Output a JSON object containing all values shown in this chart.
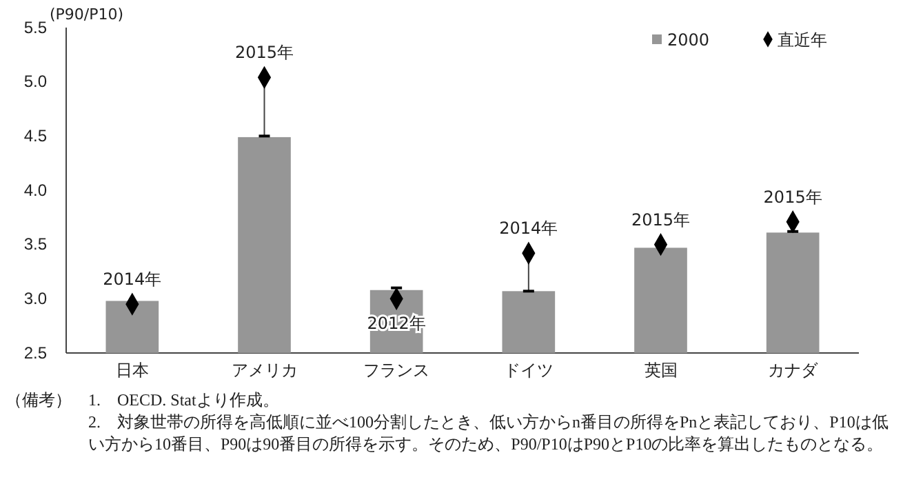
{
  "chart_data": {
    "type": "bar",
    "ylabel": "(P90/P10)",
    "categories": [
      "日本",
      "アメリカ",
      "フランス",
      "ドイツ",
      "英国",
      "カナダ"
    ],
    "series": [
      {
        "name": "2000",
        "type": "bar",
        "color": "#969696",
        "values": [
          2.98,
          4.49,
          3.08,
          3.07,
          3.47,
          3.61
        ]
      },
      {
        "name": "直近年",
        "type": "scatter",
        "marker": "diamond",
        "color": "#000000",
        "values": [
          2.95,
          5.04,
          3.0,
          3.42,
          3.5,
          3.71
        ],
        "errors": [
          null,
          [
            4.5,
            5.04
          ],
          [
            3.0,
            3.1
          ],
          [
            3.07,
            3.42
          ],
          null,
          [
            3.62,
            3.71
          ]
        ]
      }
    ],
    "ylim": [
      2.5,
      5.5
    ],
    "yticks": [
      {
        "value": 2.5,
        "label": "2.5"
      },
      {
        "value": 3,
        "label": "3.0"
      },
      {
        "value": 3.5,
        "label": "3.5"
      },
      {
        "value": 4,
        "label": "4.0"
      },
      {
        "value": 4.5,
        "label": "4.5"
      },
      {
        "value": 5,
        "label": "5.0"
      },
      {
        "value": 5.5,
        "label": "5.5"
      }
    ],
    "grid": false,
    "legend": "top right",
    "annotations": [
      {
        "text": "2014年",
        "x": "日本",
        "y": 2.95
      },
      {
        "text": "2015年",
        "x": "アメリカ",
        "y": 5.04
      },
      {
        "text": "2012年",
        "x": "フランス",
        "y": 3.0
      },
      {
        "text": "2014年",
        "x": "ドイツ",
        "y": 3.42
      },
      {
        "text": "2015年",
        "x": "英国",
        "y": 3.5
      },
      {
        "text": "2015年",
        "x": "カナダ",
        "y": 3.71
      },
      "（備考）",
      "1.　OECD. Statより作成。",
      "2.　対象世帯の所得を高低順に並べ100分割したとき、低い方からn番目の所得をPnと表記しており、P10は低い方から10番目、P90は90番目の所得を示す。そのため、P90/P10はP90とP10の比率を算出したものとなる。"
    ]
  }
}
